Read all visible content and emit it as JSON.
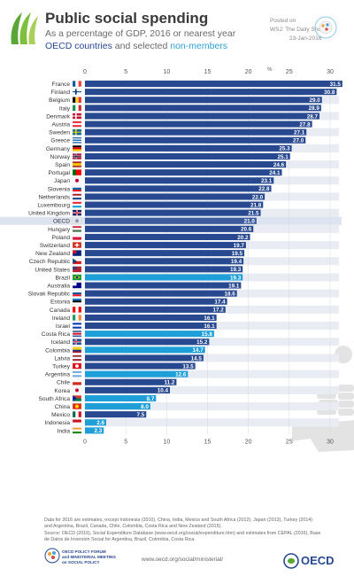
{
  "header": {
    "title": "Public social spending",
    "subtitle": "As a percentage of GDP, 2016 or nearest year",
    "legend_oecd": "OECD countries",
    "legend_and": " and selected ",
    "legend_non": "non-members",
    "posted_label": "Posted on",
    "posted_by": "WSJ: The Daily Shot",
    "posted_date": "23-Jan-2016"
  },
  "colors": {
    "oecd": "#28498f",
    "non_member": "#1e9fd8",
    "average": "#3d5c9e",
    "average_row": "#dde3ef",
    "stripe": "#e9edf3",
    "grid": "#ffffff"
  },
  "chart_data": {
    "type": "bar",
    "orientation": "horizontal",
    "unit": "%",
    "xlim": [
      0,
      30
    ],
    "xticks": [
      0,
      5,
      10,
      15,
      20,
      25,
      30
    ],
    "categories": [
      "France",
      "Finland",
      "Belgium",
      "Italy",
      "Denmark",
      "Austria",
      "Sweden",
      "Greece",
      "Germany",
      "Norway",
      "Spain",
      "Portugal",
      "Japan",
      "Slovenia",
      "Netherlands",
      "Luxembourg",
      "United Kingdom",
      "OECD",
      "Hungary",
      "Poland",
      "Switzerland",
      "New Zealand",
      "Czech Republic",
      "United States",
      "Brazil",
      "Australia",
      "Slovak Republic",
      "Estonia",
      "Canada",
      "Ireland",
      "Israel",
      "Costa Rica",
      "Iceland",
      "Colombia",
      "Latvia",
      "Turkey",
      "Argentina",
      "Chile",
      "Korea",
      "South Africa",
      "China",
      "Mexico",
      "Indonesia",
      "India"
    ],
    "values": [
      31.5,
      30.8,
      29.0,
      28.9,
      28.7,
      27.8,
      27.1,
      27.0,
      25.3,
      25.1,
      24.6,
      24.1,
      23.1,
      22.8,
      22.0,
      21.8,
      21.5,
      21.0,
      20.6,
      20.2,
      19.7,
      19.5,
      19.4,
      19.3,
      19.3,
      19.1,
      18.6,
      17.4,
      17.2,
      16.1,
      16.1,
      15.8,
      15.2,
      14.7,
      14.5,
      13.5,
      12.6,
      11.2,
      10.4,
      8.7,
      8.0,
      7.5,
      2.6,
      2.3
    ],
    "value_labels": [
      "31.5",
      "30.8",
      "29.0",
      "28.9",
      "28.7",
      "27.8",
      "27.1",
      "27.0",
      "25.3",
      "25.1",
      "24.6",
      "24.1",
      "23.1",
      "22.8",
      "22.0",
      "21.8",
      "21.5",
      "21.0",
      "20.6",
      "20.2",
      "19.7",
      "19.5",
      "19.4",
      "19.3",
      "19.3",
      "19.1",
      "18.6",
      "17.4",
      "17.2",
      "16.1",
      "16.1",
      "15.8",
      "15.2",
      "14.7",
      "14.5",
      "13.5",
      "12.6",
      "11.2",
      "10.4",
      "8.7",
      "8.0",
      "7.5",
      "2.6",
      "2.3"
    ],
    "group": [
      "oecd",
      "oecd",
      "oecd",
      "oecd",
      "oecd",
      "oecd",
      "oecd",
      "oecd",
      "oecd",
      "oecd",
      "oecd",
      "oecd",
      "oecd",
      "oecd",
      "oecd",
      "oecd",
      "oecd",
      "average",
      "oecd",
      "oecd",
      "oecd",
      "oecd",
      "oecd",
      "oecd",
      "non_member",
      "oecd",
      "oecd",
      "oecd",
      "oecd",
      "oecd",
      "oecd",
      "non_member",
      "oecd",
      "non_member",
      "oecd",
      "oecd",
      "non_member",
      "oecd",
      "oecd",
      "non_member",
      "non_member",
      "oecd",
      "non_member",
      "non_member"
    ],
    "flags": [
      [
        "v",
        "#0055a4",
        "#ffffff",
        "#ef4135"
      ],
      [
        "nordic",
        "#ffffff",
        "#003580"
      ],
      [
        "v",
        "#000000",
        "#fdda24",
        "#ef3340"
      ],
      [
        "v",
        "#009246",
        "#ffffff",
        "#ce2b37"
      ],
      [
        "nordic",
        "#c8102e",
        "#ffffff"
      ],
      [
        "h",
        "#ed2939",
        "#ffffff",
        "#ed2939"
      ],
      [
        "nordic",
        "#006aa7",
        "#fecc00"
      ],
      [
        "stripes",
        "#0d5eaf",
        "#ffffff"
      ],
      [
        "h",
        "#000000",
        "#dd0000",
        "#ffce00"
      ],
      [
        "nordic2",
        "#ba0c2f",
        "#ffffff",
        "#00205b"
      ],
      [
        "h3",
        "#aa151b",
        "#f1bf00",
        "#aa151b"
      ],
      [
        "v2",
        "#006600",
        "#ff0000"
      ],
      [
        "circle",
        "#ffffff",
        "#bc002d"
      ],
      [
        "h",
        "#ffffff",
        "#005da4",
        "#ed1c24"
      ],
      [
        "h",
        "#ae1c28",
        "#ffffff",
        "#21468b"
      ],
      [
        "h",
        "#ed2939",
        "#ffffff",
        "#00a1de"
      ],
      [
        "uk",
        "#012169",
        "#ffffff",
        "#c8102e"
      ],
      [
        "circle",
        "#e6e6e6",
        "#8a9bc0"
      ],
      [
        "h",
        "#cd2a3e",
        "#ffffff",
        "#436f4d"
      ],
      [
        "h2",
        "#ffffff",
        "#dc143c"
      ],
      [
        "cross",
        "#d52b1e",
        "#ffffff"
      ],
      [
        "canton",
        "#00247d",
        "#cc142b"
      ],
      [
        "tri",
        "#ffffff",
        "#d7141a",
        "#11457e"
      ],
      [
        "canton",
        "#b22234",
        "#3c3b6e"
      ],
      [
        "diamond",
        "#009c3b",
        "#ffdf00",
        "#002776"
      ],
      [
        "canton",
        "#00008b",
        "#ffffff"
      ],
      [
        "h",
        "#ffffff",
        "#0b4ea2",
        "#ee1c25"
      ],
      [
        "h",
        "#0072ce",
        "#000000",
        "#ffffff"
      ],
      [
        "v",
        "#ff0000",
        "#ffffff",
        "#ff0000"
      ],
      [
        "v",
        "#169b62",
        "#ffffff",
        "#ff883e"
      ],
      [
        "h",
        "#0038b8",
        "#ffffff",
        "#0038b8"
      ],
      [
        "h5",
        "#002b7f",
        "#ffffff",
        "#ce1126"
      ],
      [
        "nordic2",
        "#02529c",
        "#ffffff",
        "#dc1e35"
      ],
      [
        "h3",
        "#fcd116",
        "#003893",
        "#ce1126"
      ],
      [
        "h",
        "#9e3039",
        "#ffffff",
        "#9e3039"
      ],
      [
        "circle",
        "#e30a17",
        "#ffffff"
      ],
      [
        "h",
        "#74acdf",
        "#ffffff",
        "#74acdf"
      ],
      [
        "h2",
        "#ffffff",
        "#d52b1e"
      ],
      [
        "circle",
        "#ffffff",
        "#c60c30"
      ],
      [
        "tri",
        "#de3831",
        "#007a4d",
        "#002395"
      ],
      [
        "circle",
        "#de2910",
        "#ffde00"
      ],
      [
        "v",
        "#006847",
        "#ffffff",
        "#ce1126"
      ],
      [
        "h2",
        "#ce1126",
        "#ffffff"
      ],
      [
        "h",
        "#ff9933",
        "#ffffff",
        "#138808"
      ]
    ]
  },
  "footer": {
    "note_1": "Data for 2016 are estimates, except Indonesia (2010), China, India, Mexico and South Africa (2012), Japan (2013), Turkey (2014)",
    "note_2": "and Argentina, Brazil, Canada, Chile, Colombia, Costa Rica and New Zealand (2015).",
    "note_3": "Source: OECD (2016), Social Expenditure Database (www.oecd.org/social/expenditure.htm) and estimates from CEPAL (2016), Base",
    "note_4": "de Datos de Inversión Social for Argentina, Brazil, Colombia, Costa Rica.",
    "forum_1": "OECD POLICY FORUM",
    "forum_2": "and MINISTERIAL MEETING",
    "forum_3": "on SOCIAL POLICY",
    "url": "www.oecd.org/social/ministerial/",
    "oecd_word": "OECD"
  }
}
